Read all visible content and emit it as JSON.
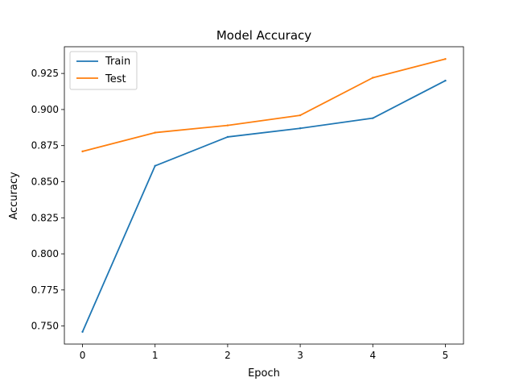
{
  "chart_data": {
    "type": "line",
    "title": "Model Accuracy",
    "xlabel": "Epoch",
    "ylabel": "Accuracy",
    "x": [
      0,
      1,
      2,
      3,
      4,
      5
    ],
    "xlim": [
      -0.25,
      5.25
    ],
    "ylim": [
      0.7375,
      0.9435
    ],
    "xticks": [
      0,
      1,
      2,
      3,
      4,
      5
    ],
    "xtick_labels": [
      "0",
      "1",
      "2",
      "3",
      "4",
      "5"
    ],
    "yticks": [
      0.75,
      0.775,
      0.8,
      0.825,
      0.85,
      0.875,
      0.9,
      0.925
    ],
    "ytick_labels": [
      "0.750",
      "0.775",
      "0.800",
      "0.825",
      "0.850",
      "0.875",
      "0.900",
      "0.925"
    ],
    "grid": false,
    "legend_position": "top-left",
    "series": [
      {
        "name": "Train",
        "color": "#1f77b4",
        "values": [
          0.746,
          0.861,
          0.881,
          0.887,
          0.894,
          0.92
        ]
      },
      {
        "name": "Test",
        "color": "#ff7f0e",
        "values": [
          0.871,
          0.884,
          0.889,
          0.896,
          0.922,
          0.935
        ]
      }
    ]
  }
}
